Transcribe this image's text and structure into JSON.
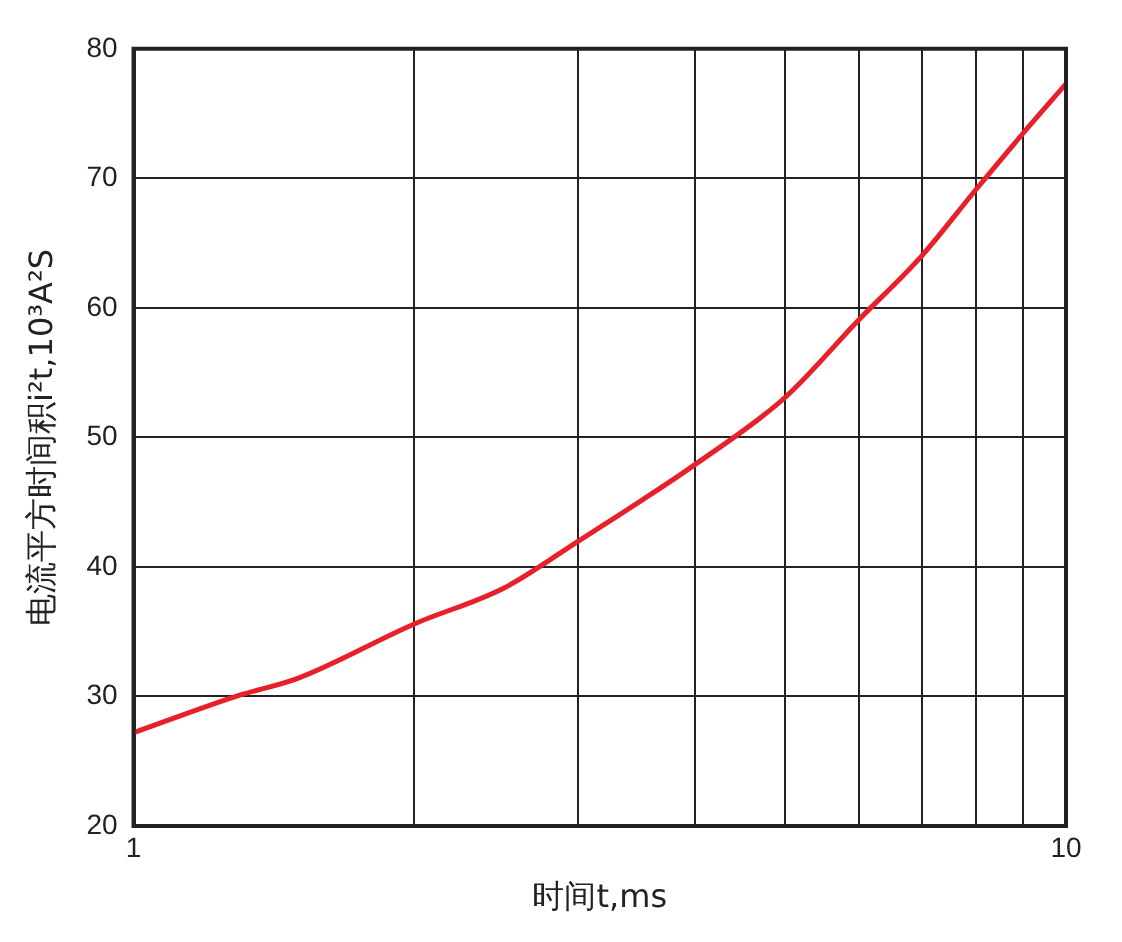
{
  "chart_data": {
    "type": "line",
    "xlabel": "时间t,ms",
    "ylabel": "电流平方时间积i²t,10³A²S",
    "x": [
      1,
      1.3,
      1.5,
      2,
      2.5,
      3,
      3.5,
      4,
      5,
      6,
      7,
      8,
      9,
      10
    ],
    "values": [
      27.2,
      30.1,
      31.4,
      35.6,
      38.4,
      42.0,
      45.1,
      47.9,
      53.1,
      59.1,
      64.0,
      69.1,
      73.5,
      77.3
    ],
    "color": "#e8202a",
    "marker": "none",
    "line_style": "solid",
    "log": "x",
    "grid": true,
    "xlim": [
      1,
      10
    ],
    "xticks": [
      1,
      {
        "value": 2,
        "label": null
      },
      {
        "value": 3,
        "label": null
      },
      {
        "value": 4,
        "label": null
      },
      {
        "value": 5,
        "label": null
      },
      {
        "value": 6,
        "label": null
      },
      {
        "value": 7,
        "label": null
      },
      {
        "value": 8,
        "label": null
      },
      {
        "value": 9,
        "label": null
      },
      10
    ],
    "ylim": [
      20,
      80
    ],
    "yticks": [
      20,
      30,
      40,
      50,
      60,
      70,
      80
    ]
  }
}
